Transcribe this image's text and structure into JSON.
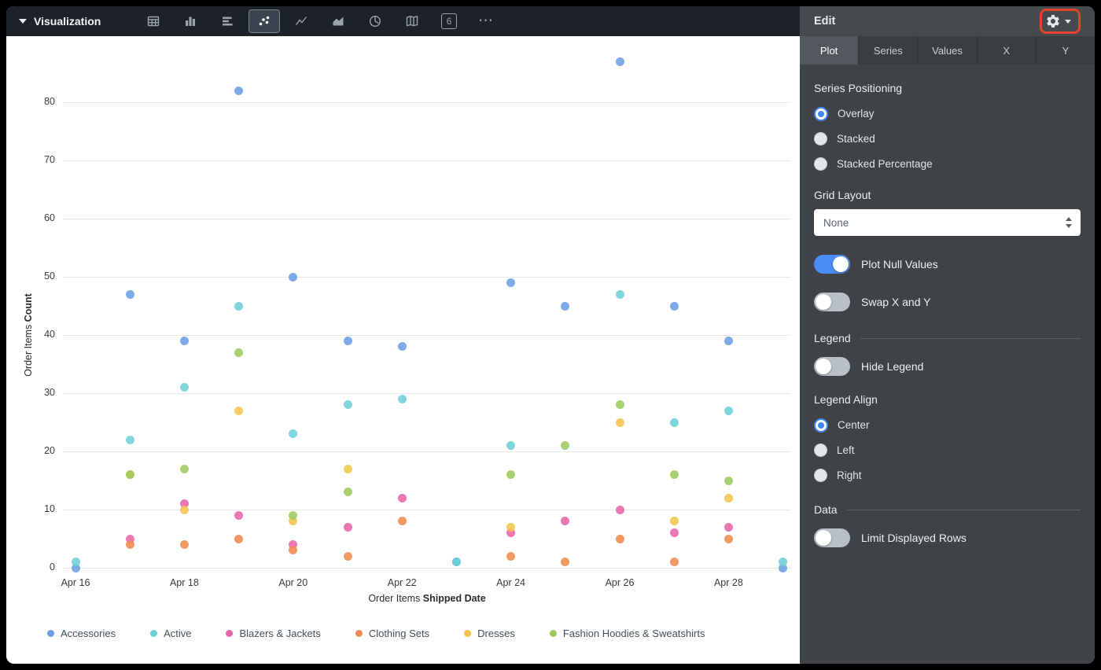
{
  "topbar": {
    "title": "Visualization"
  },
  "toolbar": {
    "icons": [
      {
        "name": "table"
      },
      {
        "name": "column-chart"
      },
      {
        "name": "bar-chart"
      },
      {
        "name": "scatter-plot",
        "selected": true
      },
      {
        "name": "line-chart"
      },
      {
        "name": "area-chart"
      },
      {
        "name": "pie-chart"
      },
      {
        "name": "map"
      },
      {
        "name": "single-value",
        "label": "6"
      },
      {
        "name": "more",
        "label": "⋯"
      }
    ]
  },
  "panel": {
    "title": "Edit",
    "tabs": [
      {
        "label": "Plot",
        "selected": true
      },
      {
        "label": "Series"
      },
      {
        "label": "Values"
      },
      {
        "label": "X"
      },
      {
        "label": "Y"
      }
    ],
    "series_positioning": {
      "label": "Series Positioning",
      "options": [
        {
          "label": "Overlay",
          "selected": true
        },
        {
          "label": "Stacked",
          "selected": false
        },
        {
          "label": "Stacked Percentage",
          "selected": false
        }
      ]
    },
    "grid_layout": {
      "label": "Grid Layout",
      "value": "None"
    },
    "toggles": [
      {
        "label": "Plot Null Values",
        "on": true
      },
      {
        "label": "Swap X and Y",
        "on": false
      }
    ],
    "legend_section": {
      "label": "Legend",
      "hide_legend": {
        "label": "Hide Legend",
        "on": false
      }
    },
    "legend_align": {
      "label": "Legend Align",
      "options": [
        {
          "label": "Center",
          "selected": true
        },
        {
          "label": "Left",
          "selected": false
        },
        {
          "label": "Right",
          "selected": false
        }
      ]
    },
    "data_section": {
      "label": "Data",
      "limit_rows": {
        "label": "Limit Displayed Rows",
        "on": false
      }
    },
    "accent_color": "#4285f4",
    "highlight_color": "#e2432a"
  },
  "chart_data": {
    "type": "scatter",
    "title": "",
    "xlabel": "Order Items Shipped Date",
    "ylabel": "Order Items Count",
    "xlabel_parts": {
      "prefix": "Order Items ",
      "field": "Shipped Date"
    },
    "ylabel_parts": {
      "prefix": "Order Items ",
      "field": "Count"
    },
    "ylim": [
      0,
      90
    ],
    "y_ticks": [
      0,
      10,
      20,
      30,
      40,
      50,
      60,
      70,
      80
    ],
    "grid": true,
    "legend_position": "bottom",
    "x": [
      "Apr 16",
      "Apr 17",
      "Apr 18",
      "Apr 19",
      "Apr 20",
      "Apr 21",
      "Apr 22",
      "Apr 23",
      "Apr 24",
      "Apr 25",
      "Apr 26",
      "Apr 27",
      "Apr 28",
      "Apr 29"
    ],
    "x_tick_labels": [
      "Apr 16",
      "Apr 18",
      "Apr 20",
      "Apr 22",
      "Apr 24",
      "Apr 26",
      "Apr 28"
    ],
    "series": [
      {
        "name": "Accessories",
        "color": "#6c9ee3",
        "values": [
          0,
          47,
          39,
          82,
          50,
          39,
          38,
          1,
          49,
          45,
          87,
          45,
          39,
          0
        ]
      },
      {
        "name": "Active",
        "color": "#6ed0d7",
        "values": [
          1,
          22,
          31,
          45,
          23,
          28,
          29,
          1,
          21,
          null,
          47,
          25,
          27,
          1
        ]
      },
      {
        "name": "Blazers & Jackets",
        "color": "#e765aa",
        "values": [
          null,
          5,
          11,
          9,
          4,
          7,
          12,
          null,
          6,
          8,
          10,
          6,
          7,
          null
        ]
      },
      {
        "name": "Clothing Sets",
        "color": "#ef8b4f",
        "values": [
          null,
          4,
          4,
          5,
          3,
          2,
          8,
          null,
          2,
          1,
          5,
          1,
          5,
          null
        ]
      },
      {
        "name": "Dresses",
        "color": "#f4c44e",
        "values": [
          null,
          16,
          10,
          27,
          8,
          17,
          null,
          null,
          7,
          null,
          25,
          8,
          12,
          null
        ]
      },
      {
        "name": "Fashion Hoodies & Sweatshirts",
        "color": "#9dca60",
        "values": [
          null,
          16,
          17,
          37,
          9,
          13,
          null,
          null,
          16,
          21,
          28,
          16,
          15,
          null
        ]
      }
    ]
  }
}
